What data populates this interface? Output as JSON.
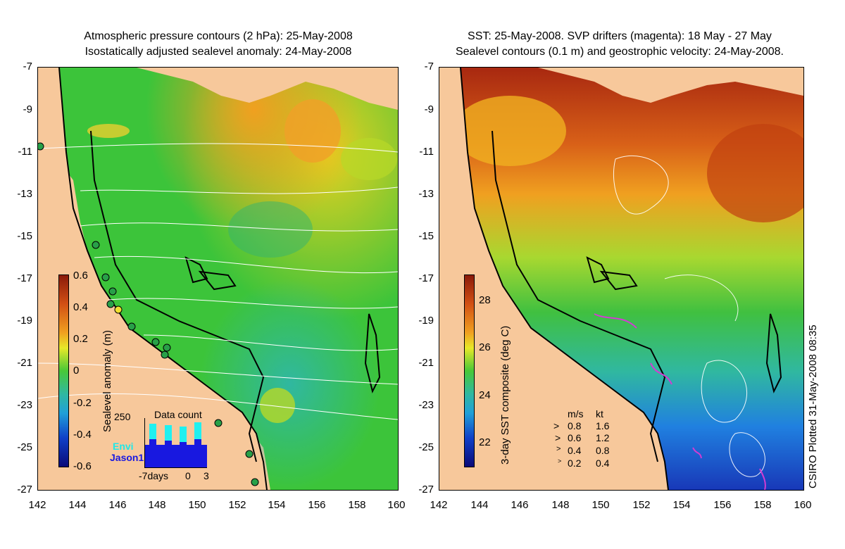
{
  "left_panel": {
    "title_line1": "Atmospheric pressure contours (2 hPa): 25-May-2008",
    "title_line2": "Isostatically adjusted sealevel anomaly: 24-May-2008",
    "colorbar": {
      "label": "Sealevel anomaly (m)",
      "ticks": [
        "0.6",
        "0.4",
        "0.2",
        "0",
        "-0.2",
        "-0.4",
        "-0.6"
      ]
    },
    "histogram": {
      "title": "Data count",
      "ymax_label": "250",
      "series": [
        "Envi",
        "Jason1"
      ],
      "x_label_left": "-7days",
      "x_label_mid": "0",
      "x_label_right": "3"
    }
  },
  "right_panel": {
    "title_line1": "SST: 25-May-2008. SVP drifters (magenta): 18 May - 27 May",
    "title_line2": "Sealevel contours (0.1 m) and geostrophic velocity: 24-May-2008.",
    "colorbar": {
      "label": "3-day SST composite (deg C)",
      "ticks": [
        "28",
        "26",
        "24",
        "22"
      ]
    },
    "velocity_legend": {
      "header_ms": "m/s",
      "header_kt": "kt",
      "rows": [
        {
          "ms": "0.8",
          "kt": "1.6"
        },
        {
          "ms": "0.6",
          "kt": "1.2"
        },
        {
          "ms": "0.4",
          "kt": "0.8"
        },
        {
          "ms": "0.2",
          "kt": "0.4"
        }
      ]
    },
    "credit": "CSIRO Plotted 31-May-2008 08:35"
  },
  "axes": {
    "y_ticks": [
      "-7",
      "-9",
      "-11",
      "-13",
      "-15",
      "-17",
      "-19",
      "-21",
      "-23",
      "-25",
      "-27"
    ],
    "x_ticks": [
      "142",
      "144",
      "146",
      "148",
      "150",
      "152",
      "154",
      "156",
      "158",
      "160"
    ]
  },
  "colors": {
    "land": "#f7c89b",
    "ssla_green": "#36c33c",
    "sst_red": "#b52d0e",
    "sst_blue": "#1456c8",
    "drifter_magenta": "#d23cd2"
  }
}
